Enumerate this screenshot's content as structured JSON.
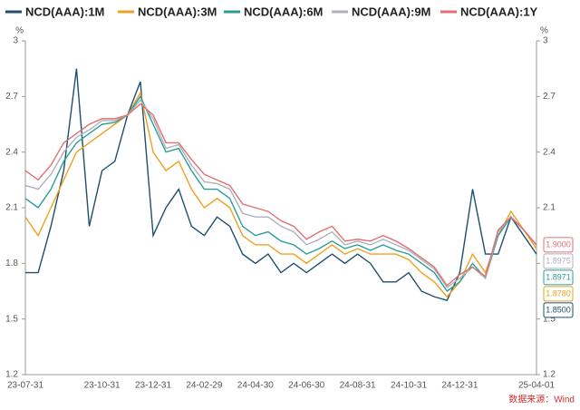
{
  "chart_data": {
    "type": "line",
    "categories": [
      "23-07-31",
      null,
      null,
      null,
      null,
      null,
      "23-10-31",
      null,
      null,
      null,
      "23-12-31",
      null,
      null,
      null,
      "24-02-29",
      null,
      null,
      null,
      "24-04-30",
      null,
      null,
      null,
      "24-06-30",
      null,
      null,
      null,
      "24-08-31",
      null,
      null,
      null,
      "24-10-31",
      null,
      null,
      null,
      "24-12-31",
      null,
      null,
      null,
      null,
      null,
      "25-04-01"
    ],
    "y_unit": "%",
    "y2_unit": "%",
    "ylim": [
      1.2,
      3
    ],
    "yticks": [
      1.2,
      1.5,
      1.8,
      2.1,
      2.4,
      2.7,
      3
    ],
    "y2lim": [
      1.2,
      3
    ],
    "y2ticks": [
      1.2,
      1.5,
      1.8,
      2.1,
      2.4,
      2.7,
      3
    ],
    "source": "数据来源：Wind",
    "series": [
      {
        "name": "NCD(AAA):1M",
        "color": "#1d4f6e",
        "values": [
          1.75,
          1.75,
          2.0,
          2.3,
          2.85,
          2.0,
          2.3,
          2.35,
          2.6,
          2.78,
          1.95,
          2.1,
          2.2,
          2.0,
          1.95,
          2.05,
          2.0,
          1.85,
          1.8,
          1.85,
          1.75,
          1.8,
          1.75,
          1.8,
          1.85,
          1.8,
          1.85,
          1.8,
          1.7,
          1.7,
          1.75,
          1.65,
          1.62,
          1.6,
          1.75,
          2.2,
          1.85,
          1.85,
          2.05,
          1.95,
          1.85
        ],
        "value_labels": [
          null,
          null,
          null,
          null,
          null,
          null,
          null,
          null,
          null,
          null,
          null,
          null,
          null,
          null,
          null,
          null,
          null,
          null,
          null,
          null,
          null,
          null,
          null,
          null,
          null,
          null,
          null,
          null,
          null,
          null,
          null,
          null,
          null,
          null,
          null,
          null,
          null,
          null,
          null,
          null,
          "1.8500"
        ]
      },
      {
        "name": "NCD(AAA):3M",
        "color": "#f0a020",
        "values": [
          2.05,
          1.95,
          2.1,
          2.25,
          2.4,
          2.45,
          2.5,
          2.55,
          2.6,
          2.72,
          2.4,
          2.3,
          2.35,
          2.2,
          2.1,
          2.15,
          2.1,
          1.95,
          1.9,
          1.9,
          1.85,
          1.85,
          1.8,
          1.85,
          1.9,
          1.85,
          1.88,
          1.85,
          1.85,
          1.85,
          1.82,
          1.75,
          1.7,
          1.62,
          1.7,
          1.85,
          1.75,
          1.95,
          2.08,
          1.98,
          1.878
        ],
        "value_labels": [
          null,
          null,
          null,
          null,
          null,
          null,
          null,
          null,
          null,
          null,
          null,
          null,
          null,
          null,
          null,
          null,
          null,
          null,
          null,
          null,
          null,
          null,
          null,
          null,
          null,
          null,
          null,
          null,
          null,
          null,
          null,
          null,
          null,
          null,
          null,
          null,
          null,
          null,
          null,
          null,
          "1.8780"
        ]
      },
      {
        "name": "NCD(AAA):6M",
        "color": "#2a9d9a",
        "values": [
          2.15,
          2.1,
          2.2,
          2.35,
          2.45,
          2.5,
          2.55,
          2.56,
          2.6,
          2.7,
          2.55,
          2.4,
          2.42,
          2.3,
          2.2,
          2.2,
          2.15,
          2.0,
          1.95,
          1.97,
          1.92,
          1.9,
          1.85,
          1.88,
          1.92,
          1.88,
          1.9,
          1.87,
          1.9,
          1.87,
          1.85,
          1.8,
          1.75,
          1.65,
          1.7,
          1.8,
          1.72,
          1.95,
          2.05,
          1.98,
          1.8971
        ],
        "value_labels": [
          null,
          null,
          null,
          null,
          null,
          null,
          null,
          null,
          null,
          null,
          null,
          null,
          null,
          null,
          null,
          null,
          null,
          null,
          null,
          null,
          null,
          null,
          null,
          null,
          null,
          null,
          null,
          null,
          null,
          null,
          null,
          null,
          null,
          null,
          null,
          null,
          null,
          null,
          null,
          null,
          "1.8971"
        ]
      },
      {
        "name": "NCD(AAA):9M",
        "color": "#b0b0bc",
        "values": [
          2.22,
          2.2,
          2.28,
          2.4,
          2.48,
          2.52,
          2.57,
          2.57,
          2.6,
          2.68,
          2.58,
          2.42,
          2.44,
          2.33,
          2.24,
          2.23,
          2.2,
          2.07,
          2.05,
          2.05,
          2.0,
          1.97,
          1.9,
          1.93,
          1.97,
          1.9,
          1.92,
          1.9,
          1.93,
          1.9,
          1.87,
          1.82,
          1.77,
          1.67,
          1.72,
          1.78,
          1.72,
          1.97,
          2.05,
          1.98,
          1.8975
        ],
        "value_labels": [
          null,
          null,
          null,
          null,
          null,
          null,
          null,
          null,
          null,
          null,
          null,
          null,
          null,
          null,
          null,
          null,
          null,
          null,
          null,
          null,
          null,
          null,
          null,
          null,
          null,
          null,
          null,
          null,
          null,
          null,
          null,
          null,
          null,
          null,
          null,
          null,
          null,
          null,
          null,
          null,
          "1.8975"
        ]
      },
      {
        "name": "NCD(AAA):1Y",
        "color": "#e07070",
        "values": [
          2.3,
          2.25,
          2.33,
          2.45,
          2.5,
          2.55,
          2.58,
          2.58,
          2.6,
          2.66,
          2.6,
          2.45,
          2.45,
          2.36,
          2.28,
          2.25,
          2.22,
          2.12,
          2.1,
          2.08,
          2.03,
          2.0,
          1.93,
          1.97,
          2.0,
          1.92,
          1.93,
          1.92,
          1.95,
          1.92,
          1.88,
          1.83,
          1.78,
          1.68,
          1.74,
          1.78,
          1.73,
          1.98,
          2.05,
          1.98,
          1.9
        ],
        "value_labels": [
          null,
          null,
          null,
          null,
          null,
          null,
          null,
          null,
          null,
          null,
          null,
          null,
          null,
          null,
          null,
          null,
          null,
          null,
          null,
          null,
          null,
          null,
          null,
          null,
          null,
          null,
          null,
          null,
          null,
          null,
          null,
          null,
          null,
          null,
          null,
          null,
          null,
          null,
          null,
          null,
          "1.9000"
        ]
      }
    ]
  }
}
